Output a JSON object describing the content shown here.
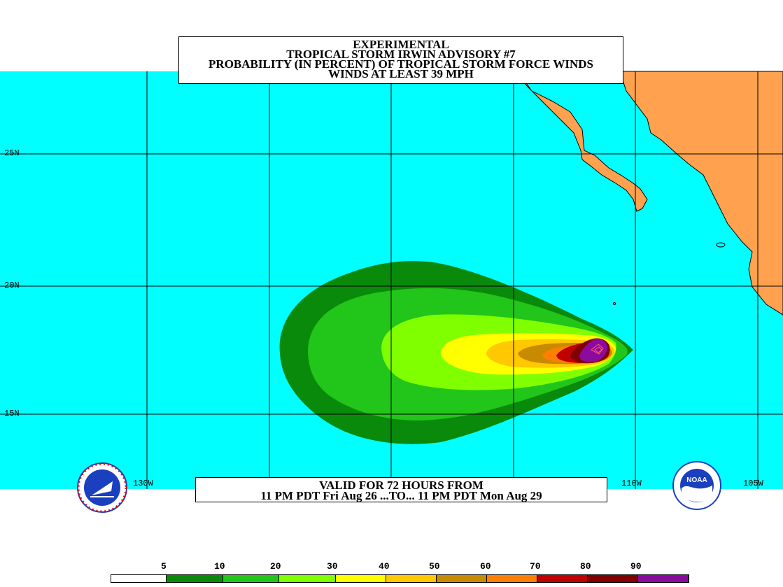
{
  "title": {
    "line1": "EXPERIMENTAL",
    "line2": "TROPICAL STORM IRWIN ADVISORY #7",
    "line3": "PROBABILITY (IN PERCENT) OF TROPICAL STORM FORCE WINDS",
    "line4": "WINDS AT LEAST 39 MPH"
  },
  "valid": {
    "line1": "VALID FOR 72 HOURS FROM",
    "line2": "11 PM PDT Fri Aug 26 ...TO... 11 PM PDT Mon Aug 29"
  },
  "lat_labels": [
    "25N",
    "20N",
    "15N"
  ],
  "lon_labels": [
    "130W",
    "110W",
    "105W"
  ],
  "colors": {
    "ocean": "#00ffff",
    "land": "#ffa14f",
    "grid": "#000000"
  },
  "legend": {
    "values": [
      "5",
      "10",
      "20",
      "30",
      "40",
      "50",
      "60",
      "70",
      "80",
      "90"
    ],
    "colors": [
      "#ffffff",
      "#0a8a0a",
      "#22c51a",
      "#80ff00",
      "#ffff00",
      "#ffc800",
      "#c88a00",
      "#ff8000",
      "#c00000",
      "#800000",
      "#8c0aa0"
    ]
  },
  "contour_colors": [
    "#0a8a0a",
    "#22c51a",
    "#80ff00",
    "#ffff00",
    "#ffc800",
    "#c88a00",
    "#ff8000",
    "#c00000",
    "#800000",
    "#8c0aa0"
  ],
  "logos": {
    "left": "nws-logo-icon",
    "right": "noaa-logo-icon"
  }
}
